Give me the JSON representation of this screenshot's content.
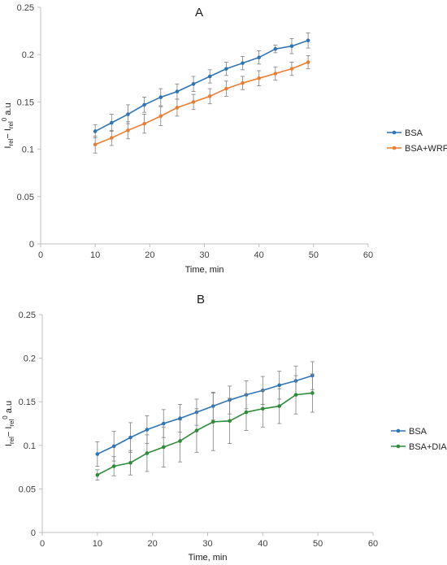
{
  "chart_data": [
    {
      "type": "line",
      "title": "A",
      "xlabel": "Time, min",
      "ylabel": "I_rel − I_rel^0, a.u",
      "ylabel_parts": {
        "main": "I",
        "sub": "rel",
        "dash": "− I",
        "sub2": "rel",
        "sup": "0",
        "unit": " a.u"
      },
      "xlim": [
        0,
        60
      ],
      "ylim": [
        0,
        0.25
      ],
      "xticks": [
        0,
        10,
        20,
        30,
        40,
        50,
        60
      ],
      "yticks": [
        0,
        0.05,
        0.1,
        0.15,
        0.2,
        0.25
      ],
      "ytick_labels": [
        "0",
        "0.05",
        "0.1",
        "0.15",
        "0.2",
        "0.25"
      ],
      "grid": false,
      "legend": "right",
      "x": [
        10,
        13,
        16,
        19,
        22,
        25,
        28,
        31,
        34,
        37,
        40,
        43,
        46,
        49
      ],
      "series": [
        {
          "name": "BSA",
          "color": "#2e75b6",
          "values": [
            0.119,
            0.128,
            0.137,
            0.147,
            0.155,
            0.161,
            0.169,
            0.177,
            0.185,
            0.191,
            0.197,
            0.206,
            0.209,
            0.215
          ],
          "errors": [
            0.007,
            0.009,
            0.01,
            0.008,
            0.009,
            0.008,
            0.008,
            0.007,
            0.007,
            0.007,
            0.007,
            0.004,
            0.008,
            0.008
          ]
        },
        {
          "name": "BSA+WRF",
          "color": "#ed7d31",
          "values": [
            0.105,
            0.112,
            0.12,
            0.127,
            0.135,
            0.144,
            0.15,
            0.156,
            0.164,
            0.17,
            0.175,
            0.18,
            0.185,
            0.192
          ],
          "errors": [
            0.009,
            0.008,
            0.009,
            0.01,
            0.01,
            0.009,
            0.008,
            0.008,
            0.008,
            0.007,
            0.008,
            0.007,
            0.007,
            0.007
          ]
        }
      ]
    },
    {
      "type": "line",
      "title": "B",
      "xlabel": "Time, min",
      "ylabel": "I_rel − I_rel^0, a.u",
      "ylabel_parts": {
        "main": "I",
        "sub": "rel",
        "dash": "− I",
        "sub2": "rel",
        "sup": "0",
        "unit": " a.u"
      },
      "xlim": [
        0,
        60
      ],
      "ylim": [
        0,
        0.25
      ],
      "xticks": [
        0,
        10,
        20,
        30,
        40,
        50,
        60
      ],
      "yticks": [
        0,
        0.05,
        0.1,
        0.15,
        0.2,
        0.25
      ],
      "ytick_labels": [
        "0",
        "0.05",
        "0.1",
        "0.15",
        "0.2",
        "0.25"
      ],
      "grid": false,
      "legend": "right",
      "x": [
        10,
        13,
        16,
        19,
        22,
        25,
        28,
        31,
        34,
        37,
        40,
        43,
        46,
        49
      ],
      "series": [
        {
          "name": "BSA",
          "color": "#2e75b6",
          "values": [
            0.09,
            0.099,
            0.109,
            0.118,
            0.125,
            0.131,
            0.138,
            0.145,
            0.152,
            0.158,
            0.163,
            0.169,
            0.174,
            0.18
          ],
          "errors": [
            0.014,
            0.017,
            0.017,
            0.016,
            0.016,
            0.016,
            0.015,
            0.016,
            0.016,
            0.016,
            0.016,
            0.016,
            0.017,
            0.016
          ]
        },
        {
          "name": "BSA+DIA",
          "color": "#2e8b3a",
          "values": [
            0.066,
            0.076,
            0.08,
            0.091,
            0.098,
            0.105,
            0.117,
            0.127,
            0.128,
            0.138,
            0.142,
            0.145,
            0.158,
            0.16
          ],
          "errors": [
            0.006,
            0.011,
            0.014,
            0.021,
            0.023,
            0.024,
            0.025,
            0.033,
            0.026,
            0.021,
            0.021,
            0.02,
            0.022,
            0.022
          ]
        }
      ]
    }
  ]
}
